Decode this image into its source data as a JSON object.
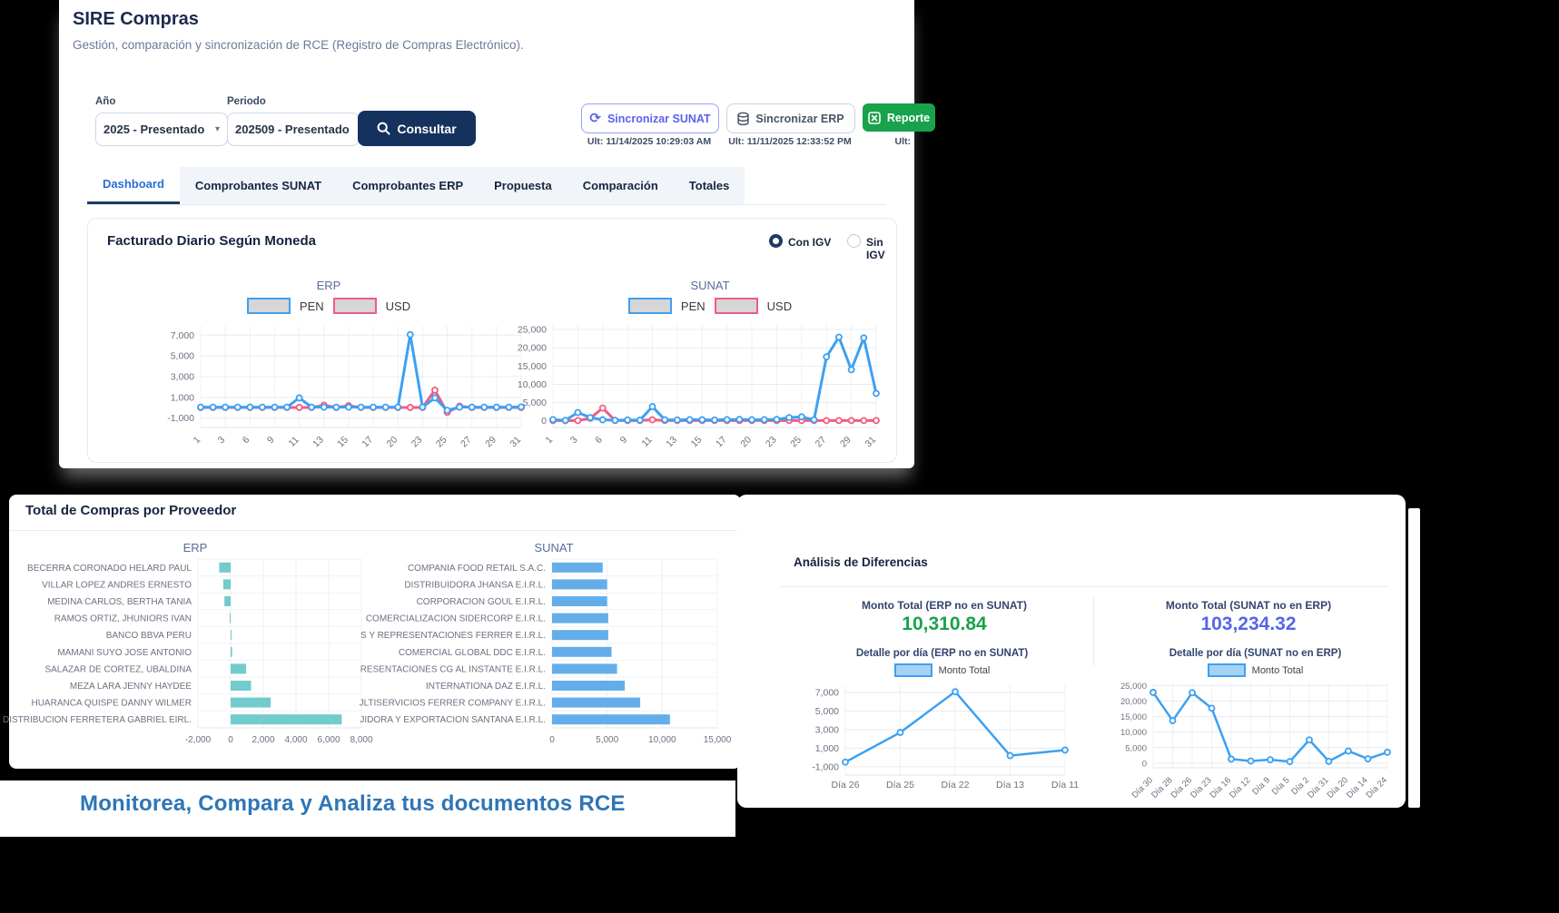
{
  "header": {
    "title": "SIRE Compras",
    "subtitle": "Gestión, comparación y sincronización de RCE (Registro de Compras Electrónico)."
  },
  "filters": {
    "anio_label": "Año",
    "anio_value": "2025 - Presentado",
    "periodo_label": "Periodo",
    "periodo_value": "202509 - Presentado",
    "consultar_label": "Consultar",
    "sync_sunat_label": "Sincronizar SUNAT",
    "sync_sunat_ult": "Ult: 11/14/2025 10:29:03 AM",
    "sync_erp_label": "Sincronizar ERP",
    "sync_erp_ult": "Ult: 11/11/2025 12:33:52 PM",
    "reporte_label": "Reporte",
    "reporte_ult": "Ult:"
  },
  "tabs": {
    "items": [
      {
        "label": "Dashboard"
      },
      {
        "label": "Comprobantes SUNAT"
      },
      {
        "label": "Comprobantes ERP"
      },
      {
        "label": "Propuesta"
      },
      {
        "label": "Comparación"
      },
      {
        "label": "Totales"
      }
    ]
  },
  "facturado": {
    "title": "Facturado Diario Según Moneda",
    "radio_con": "Con IGV",
    "radio_sin": "Sin IGV"
  },
  "proveedor": {
    "title": "Total de Compras por Proveedor"
  },
  "diferencias": {
    "title": "Análisis de Diferencias",
    "metric_left_label": "Monto Total (ERP no en SUNAT)",
    "metric_left_value": "10,310.84",
    "metric_right_label": "Monto Total (SUNAT no en ERP)",
    "metric_right_value": "103,234.32",
    "detail_left_title": "Detalle por día (ERP no en SUNAT)",
    "detail_right_title": "Detalle por día (SUNAT no en ERP)",
    "legend_monto": "Monto Total"
  },
  "footer": {
    "tagline": "Monitorea, Compara y Analiza tus documentos RCE"
  },
  "colors": {
    "accent_navy": "#15325e",
    "accent_blue": "#3da0f2",
    "accent_pink": "#f25c82",
    "green": "#17a24b",
    "indigo": "#5a61f0",
    "teal": "#72cbcd",
    "bar_blue": "#63aeea",
    "metric_green": "#18a24b",
    "metric_indigo": "#5566e8",
    "tagline_blue": "#2e75b6"
  },
  "chart_data": [
    {
      "id": "erp-daily",
      "type": "line",
      "title": "ERP",
      "x": [
        "1",
        "3",
        "6",
        "9",
        "11",
        "13",
        "15",
        "17",
        "20",
        "23",
        "25",
        "27",
        "29",
        "31"
      ],
      "xlabel": "",
      "ylabel": "",
      "grid": true,
      "legend_position": "top",
      "yticks": [
        7000,
        5000,
        3000,
        1000,
        -1000
      ],
      "ylim": [
        -1900,
        7900
      ],
      "series": [
        {
          "name": "PEN",
          "color": "#3da0f2",
          "values": [
            60,
            60,
            60,
            60,
            60,
            60,
            60,
            60,
            950,
            60,
            60,
            60,
            60,
            60,
            60,
            60,
            60,
            7050,
            60,
            950,
            -250,
            60,
            60,
            60,
            60,
            60,
            80
          ]
        },
        {
          "name": "USD",
          "color": "#f25c82",
          "values": [
            30,
            30,
            30,
            30,
            30,
            30,
            30,
            30,
            30,
            30,
            250,
            30,
            200,
            30,
            30,
            30,
            30,
            30,
            30,
            1700,
            -450,
            150,
            30,
            30,
            30,
            30,
            30
          ]
        }
      ]
    },
    {
      "id": "sunat-daily",
      "type": "line",
      "title": "SUNAT",
      "x": [
        "1",
        "3",
        "6",
        "9",
        "11",
        "13",
        "15",
        "17",
        "20",
        "23",
        "25",
        "27",
        "29",
        "31"
      ],
      "xlabel": "",
      "ylabel": "",
      "grid": true,
      "legend_position": "top",
      "yticks": [
        25000,
        20000,
        15000,
        10000,
        5000,
        0
      ],
      "ylim": [
        -1800,
        26500
      ],
      "series": [
        {
          "name": "PEN",
          "color": "#3da0f2",
          "values": [
            350,
            150,
            2300,
            900,
            300,
            150,
            250,
            200,
            3900,
            300,
            250,
            350,
            300,
            250,
            350,
            400,
            300,
            350,
            400,
            900,
            1100,
            300,
            17500,
            22900,
            14000,
            22700,
            7500
          ]
        },
        {
          "name": "USD",
          "color": "#f25c82",
          "values": [
            100,
            50,
            100,
            700,
            3500,
            100,
            100,
            100,
            300,
            100,
            100,
            100,
            100,
            100,
            100,
            100,
            100,
            100,
            100,
            100,
            100,
            100,
            100,
            100,
            100,
            100,
            100
          ]
        }
      ]
    },
    {
      "id": "erp-provider",
      "type": "bar",
      "title": "ERP",
      "color": "#72cbcd",
      "categories": [
        "BECERRA CORONADO HELARD PAUL",
        "VILLAR LOPEZ ANDRES ERNESTO",
        "MEDINA CARLOS, BERTHA TANIA",
        "RAMOS ORTIZ, JHUNIORS IVAN",
        "BANCO BBVA PERU",
        "MAMANI SUYO JOSE ANTONIO",
        "SALAZAR DE CORTEZ, UBALDINA",
        "MEZA LARA JENNY HAYDEE",
        "HUARANCA QUISPE DANNY WILMER",
        "DISTRIBUCION FERRETERA GABRIEL EIRL."
      ],
      "values": [
        -700,
        -450,
        -380,
        -60,
        15,
        90,
        950,
        1250,
        2450,
        6800
      ],
      "xticks": [
        -2000,
        0,
        2000,
        4000,
        6000,
        8000
      ],
      "xlim": [
        -2000,
        8000
      ]
    },
    {
      "id": "sunat-provider",
      "type": "bar",
      "title": "SUNAT",
      "color": "#63aeea",
      "categories": [
        "COMPANIA FOOD RETAIL S.A.C.",
        "DISTRIBUIDORA JHANSA E.I.R.L.",
        "CORPORACION GOUL E.I.R.L.",
        "COMERCIALIZACION SIDERCORP E.I.R.L.",
        "S Y REPRESENTACIONES FERRER E.I.R.L.",
        "COMERCIAL GLOBAL DDC E.I.R.L.",
        "RESENTACIONES CG AL INSTANTE E.I.R.L.",
        "INTERNATIONA DAZ E.I.R.L.",
        "JLTISERVICIOS FERRER COMPANY E.I.R.L.",
        "JIDORA Y EXPORTACION SANTANA E.I.R.L."
      ],
      "values": [
        4600,
        5000,
        5000,
        5100,
        5100,
        5400,
        5900,
        6600,
        8000,
        10700
      ],
      "xticks": [
        0,
        5000,
        10000,
        15000
      ],
      "xlim": [
        0,
        15000
      ]
    },
    {
      "id": "diff-erp",
      "type": "line",
      "title": "Detalle por día (ERP no en SUNAT)",
      "x": [
        "Día 26",
        "Día 25",
        "Día 22",
        "Día 13",
        "Día 11"
      ],
      "yticks": [
        7000,
        5000,
        3000,
        1000,
        -1000
      ],
      "ylim": [
        -1900,
        7900
      ],
      "series": [
        {
          "name": "Monto Total",
          "color": "#3da0f2",
          "values": [
            -500,
            2700,
            7100,
            200,
            800
          ]
        }
      ]
    },
    {
      "id": "diff-sunat",
      "type": "line",
      "title": "Detalle por día (SUNAT no en ERP)",
      "x": [
        "Día 30",
        "Día 28",
        "Día 26",
        "Día 23",
        "Día 16",
        "Día 12",
        "Día 9",
        "Día 5",
        "Día 2",
        "Día 31",
        "Día 20",
        "Día 14",
        "Día 24"
      ],
      "yticks": [
        25000,
        20000,
        15000,
        10000,
        5000,
        0
      ],
      "ylim": [
        -1500,
        26000
      ],
      "series": [
        {
          "name": "Monto Total",
          "color": "#3da0f2",
          "values": [
            22800,
            13700,
            22700,
            17700,
            1300,
            700,
            1100,
            500,
            7500,
            600,
            3900,
            1400,
            3500
          ]
        }
      ]
    }
  ]
}
